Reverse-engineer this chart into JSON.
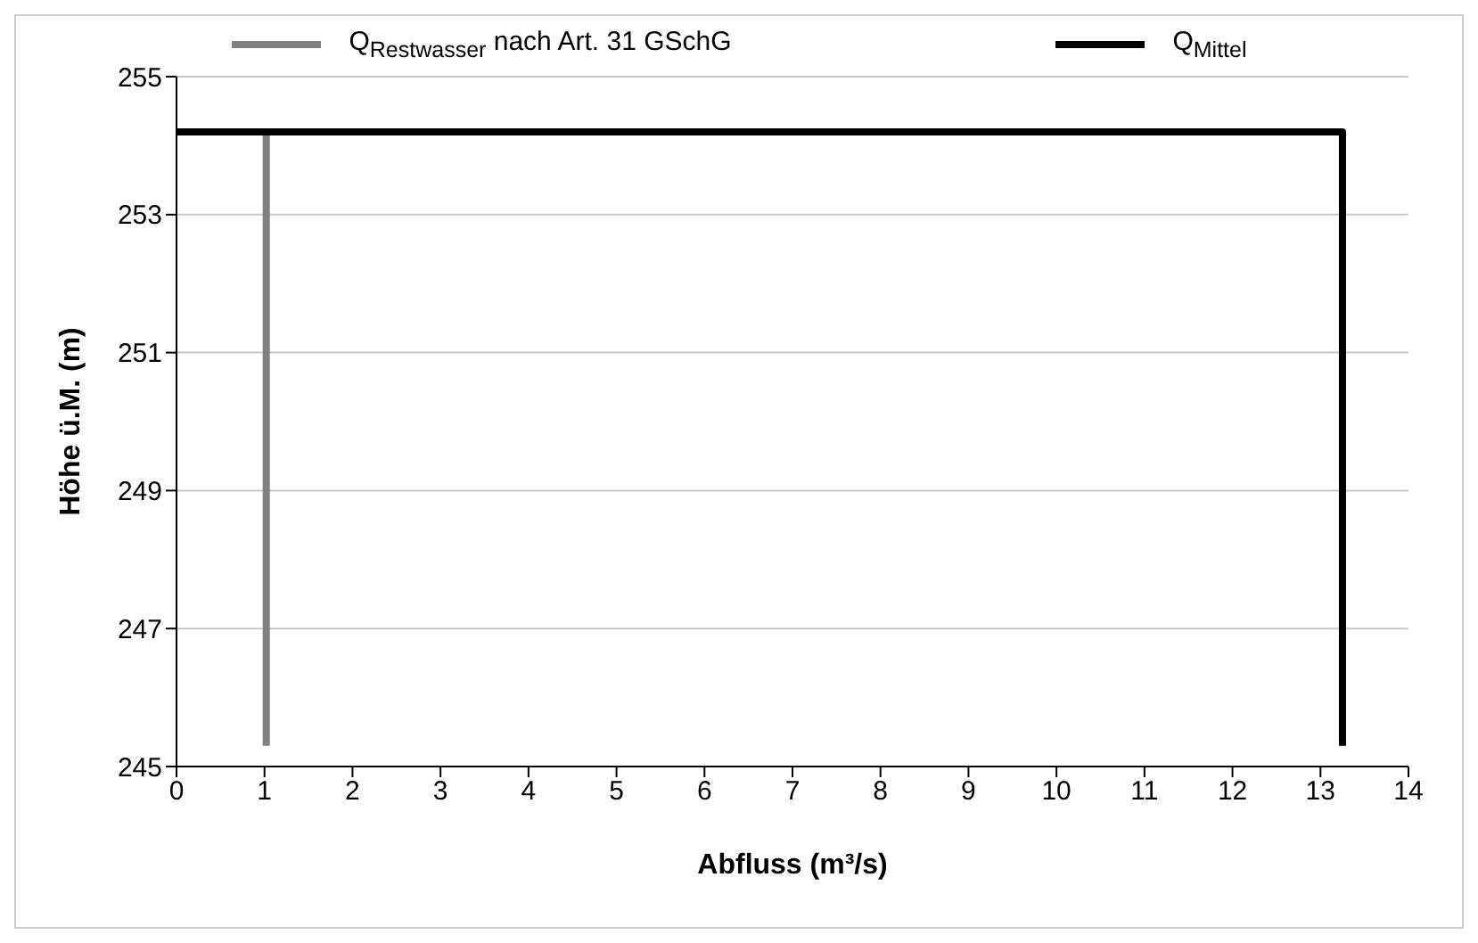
{
  "chart_data": {
    "type": "line",
    "xlabel": "Abfluss (m³/s)",
    "ylabel": "Höhe ü.M. (m)",
    "xlim": [
      0,
      14
    ],
    "xticks": [
      0,
      1,
      2,
      3,
      4,
      5,
      6,
      7,
      8,
      9,
      10,
      11,
      12,
      13,
      14
    ],
    "ylim": [
      245,
      255
    ],
    "yticks": [
      245,
      247,
      249,
      251,
      253,
      255
    ],
    "grid": "y",
    "legend": "top",
    "marker": "none",
    "line_style": "solid",
    "series": [
      {
        "name": "Q$_{Restwasser}$ nach Art. 31 GSchG",
        "color": "#808080",
        "x": [
          1.02,
          1.02
        ],
        "values": [
          254.2,
          245.3
        ]
      },
      {
        "name": "Q$_{Mittel}$",
        "color": "#000000",
        "x": [
          0,
          13.25,
          13.25
        ],
        "values": [
          254.2,
          254.2,
          245.3
        ]
      }
    ]
  }
}
